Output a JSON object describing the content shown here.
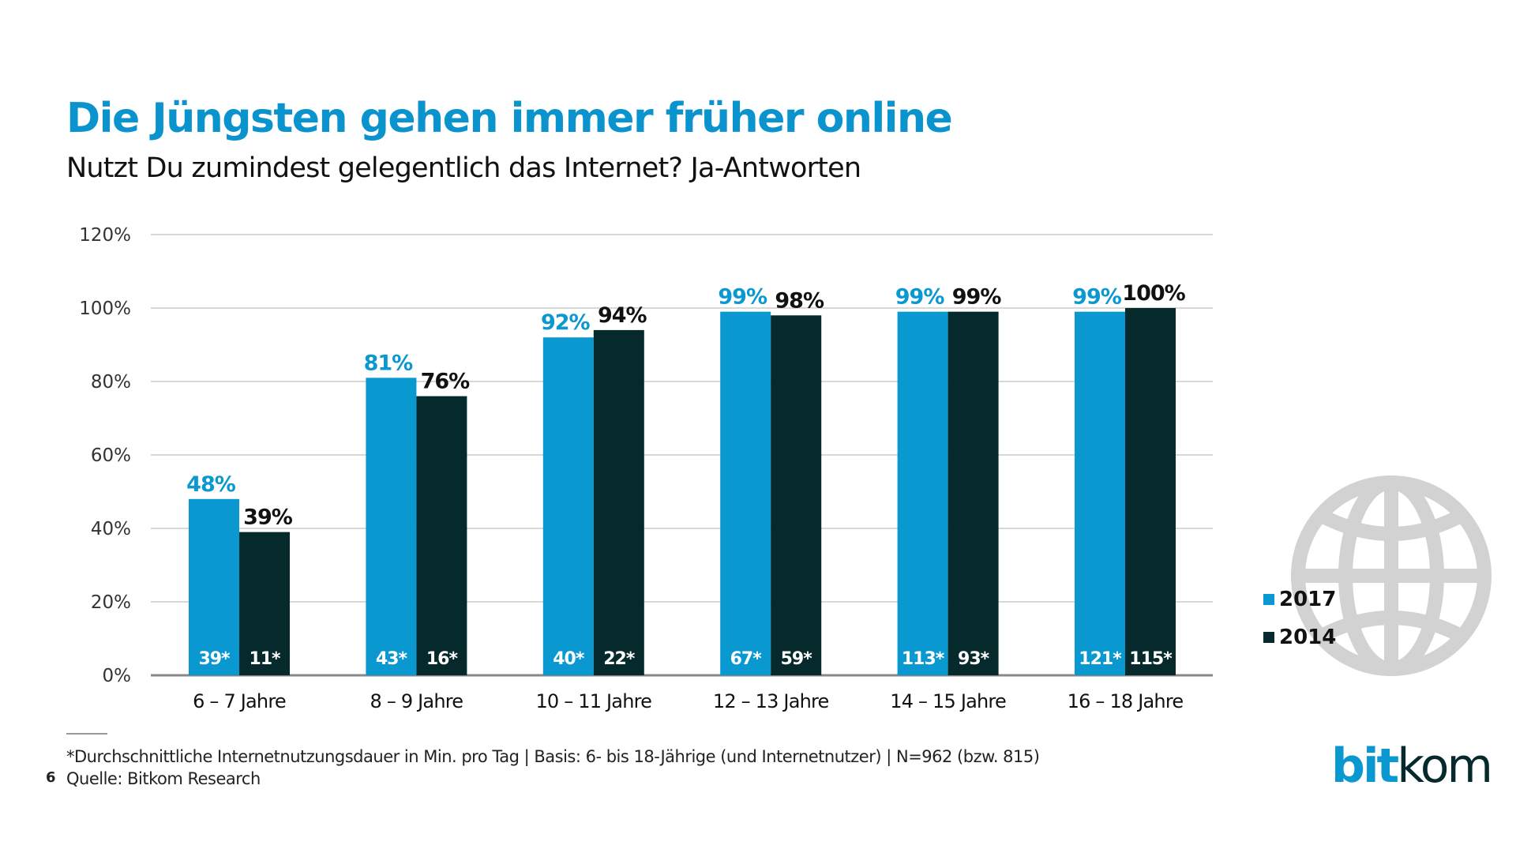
{
  "title": "Die Jüngsten gehen immer früher online",
  "subtitle": "Nutzt Du zumindest gelegentlich das Internet? Ja-Antworten",
  "chart_data": {
    "type": "bar",
    "categories": [
      "6 – 7 Jahre",
      "8 – 9 Jahre",
      "10 – 11 Jahre",
      "12 – 13 Jahre",
      "14 – 15 Jahre",
      "16 – 18 Jahre"
    ],
    "series": [
      {
        "name": "2017",
        "color": "#0a98d0",
        "values": [
          48,
          81,
          92,
          99,
          99,
          99
        ],
        "labels": [
          "48%",
          "81%",
          "92%",
          "99%",
          "99%",
          "99%"
        ],
        "minutes": [
          "39*",
          "43*",
          "40*",
          "67*",
          "113*",
          "121*"
        ]
      },
      {
        "name": "2014",
        "color": "#062a2c",
        "values": [
          39,
          76,
          94,
          98,
          99,
          100
        ],
        "labels": [
          "39%",
          "76%",
          "94%",
          "98%",
          "99%",
          "100%"
        ],
        "minutes": [
          "11*",
          "16*",
          "22*",
          "59*",
          "93*",
          "115*"
        ]
      }
    ],
    "ylim": [
      0,
      120
    ],
    "yticks": [
      "0%",
      "20%",
      "40%",
      "60%",
      "80%",
      "100%",
      "120%"
    ],
    "grid": true,
    "legend_placement": "right"
  },
  "footnote": "*Durchschnittliche Internetnutzungsdauer in Min. pro Tag | Basis: 6- bis 18-Jährige (und Internetnutzer) | N=962 (bzw. 815)",
  "page_number": "6",
  "source": "Quelle: Bitkom Research",
  "logo": {
    "part1": "bit",
    "part2": "kom",
    "color1": "#0a98d0",
    "color2": "#062a2c"
  },
  "icon": "globe-icon"
}
